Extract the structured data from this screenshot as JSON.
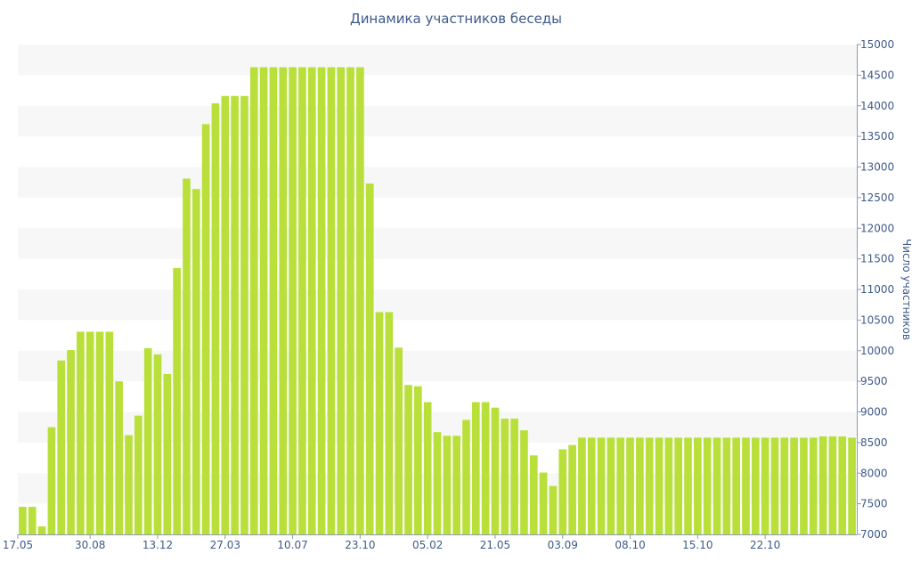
{
  "chart_data": {
    "type": "bar",
    "title": "Динамика участников беседы",
    "xlabel": "",
    "ylabel": "Число участников",
    "ylim": [
      7000,
      15000
    ],
    "y_axis_side": "right",
    "y_ticks": [
      7000,
      7500,
      8000,
      8500,
      9000,
      9500,
      10000,
      10500,
      11000,
      11500,
      12000,
      12500,
      13000,
      13500,
      14000,
      14500,
      15000
    ],
    "x_tick_labels": [
      "17.05",
      "30.08",
      "13.12",
      "27.03",
      "10.07",
      "23.10",
      "05.02",
      "21.05",
      "03.09",
      "08.10",
      "15.10",
      "22.10"
    ],
    "x_tick_positions": [
      0,
      7.5,
      14.5,
      21.5,
      28.5,
      35.5,
      42.5,
      49.5,
      56.5,
      63.5,
      70.5,
      77.5
    ],
    "grid": "horizontal alternating bands",
    "bar_color": "#b9e03a",
    "band_color": "#f7f7f7",
    "values": [
      7450,
      7450,
      7130,
      8750,
      9840,
      10010,
      10310,
      10310,
      10310,
      10310,
      9500,
      8620,
      8940,
      10040,
      9940,
      9620,
      11350,
      12810,
      12640,
      13700,
      14040,
      14160,
      14160,
      14160,
      14630,
      14630,
      14630,
      14630,
      14630,
      14630,
      14630,
      14630,
      14630,
      14630,
      14630,
      14630,
      12730,
      10630,
      10630,
      10050,
      9440,
      9420,
      9160,
      8670,
      8610,
      8610,
      8870,
      9160,
      9160,
      9070,
      8890,
      8890,
      8700,
      8290,
      8010,
      7790,
      8390,
      8460,
      8580,
      8580,
      8580,
      8580,
      8580,
      8580,
      8580,
      8580,
      8580,
      8580,
      8580,
      8580,
      8580,
      8580,
      8580,
      8580,
      8580,
      8580,
      8580,
      8580,
      8580,
      8580,
      8580,
      8580,
      8580,
      8600,
      8600,
      8600,
      8580
    ]
  }
}
